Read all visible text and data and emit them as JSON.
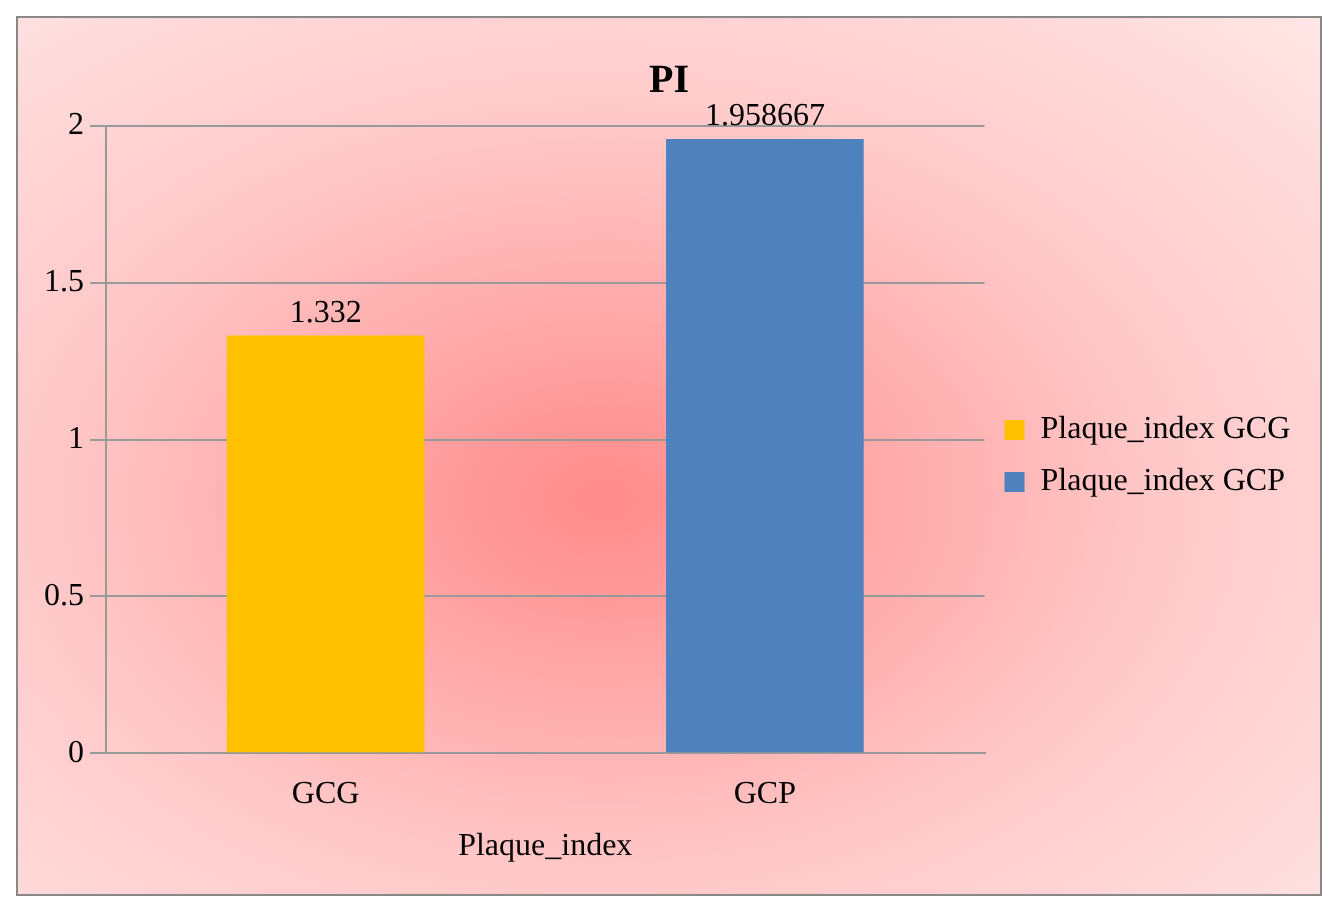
{
  "chart_data": {
    "type": "bar",
    "title": "PI",
    "xlabel": "Plaque_index",
    "categories": [
      "GCG",
      "GCP"
    ],
    "series": [
      {
        "name": "Plaque_index GCG",
        "color": "#ffc000",
        "values": [
          1.332,
          null
        ]
      },
      {
        "name": "Plaque_index GCP",
        "color": "#4f81bd",
        "values": [
          null,
          1.958667
        ]
      }
    ],
    "ylim": [
      0,
      2
    ],
    "yticks": [
      0,
      0.5,
      1,
      1.5,
      2
    ],
    "grid": "y",
    "legend": "right",
    "data_labels": true
  }
}
